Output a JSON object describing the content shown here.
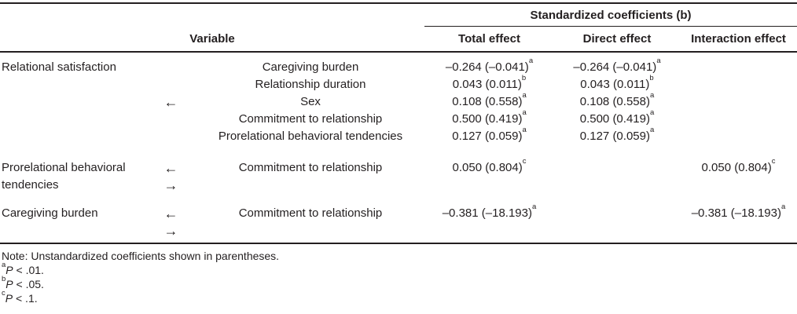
{
  "colors": {
    "text": "#231f20",
    "rule": "#231f20",
    "background": "#ffffff"
  },
  "table": {
    "spanner_header": "Standardized coefficients (b)",
    "variable_header": "Variable",
    "effect_columns": [
      "Total effect",
      "Direct effect",
      "Interaction effect"
    ],
    "blocks": [
      {
        "outcome_lines": [
          "Relational satisfaction"
        ],
        "arrows": [
          "←"
        ],
        "rows": [
          {
            "predictor": "Caregiving burden",
            "total": {
              "v": "–0.264 (–0.041)",
              "s": "a"
            },
            "direct": {
              "v": "–0.264 (–0.041)",
              "s": "a"
            }
          },
          {
            "predictor": "Relationship duration",
            "total": {
              "v": "0.043 (0.011)",
              "s": "b"
            },
            "direct": {
              "v": "0.043 (0.011)",
              "s": "b"
            }
          },
          {
            "predictor": "Sex",
            "total": {
              "v": "0.108 (0.558)",
              "s": "a"
            },
            "direct": {
              "v": "0.108 (0.558)",
              "s": "a"
            }
          },
          {
            "predictor": "Commitment to relationship",
            "total": {
              "v": "0.500 (0.419)",
              "s": "a"
            },
            "direct": {
              "v": "0.500 (0.419)",
              "s": "a"
            }
          },
          {
            "predictor": "Prorelational behavioral tendencies",
            "total": {
              "v": "0.127 (0.059)",
              "s": "a"
            },
            "direct": {
              "v": "0.127 (0.059)",
              "s": "a"
            }
          }
        ]
      },
      {
        "outcome_lines": [
          "Prorelational behavioral",
          "tendencies"
        ],
        "arrows": [
          "←",
          "→"
        ],
        "rows": [
          {
            "predictor": "Commitment to relationship",
            "total": {
              "v": "0.050 (0.804)",
              "s": "c"
            },
            "interaction": {
              "v": "0.050 (0.804)",
              "s": "c"
            }
          }
        ]
      },
      {
        "outcome_lines": [
          "Caregiving burden"
        ],
        "arrows": [
          "←",
          "→"
        ],
        "rows": [
          {
            "predictor": "Commitment to relationship",
            "total": {
              "v": "–0.381 (–18.193)",
              "s": "a"
            },
            "interaction": {
              "v": "–0.381 (–18.193)",
              "s": "a"
            }
          }
        ]
      }
    ]
  },
  "notes": {
    "general": "Note: Unstandardized coefficients shown in parentheses.",
    "footnotes": [
      {
        "sup": "a",
        "p": "P",
        "rest": " < .01."
      },
      {
        "sup": "b",
        "p": "P",
        "rest": " < .05."
      },
      {
        "sup": "c",
        "p": "P",
        "rest": " < .1."
      }
    ]
  }
}
